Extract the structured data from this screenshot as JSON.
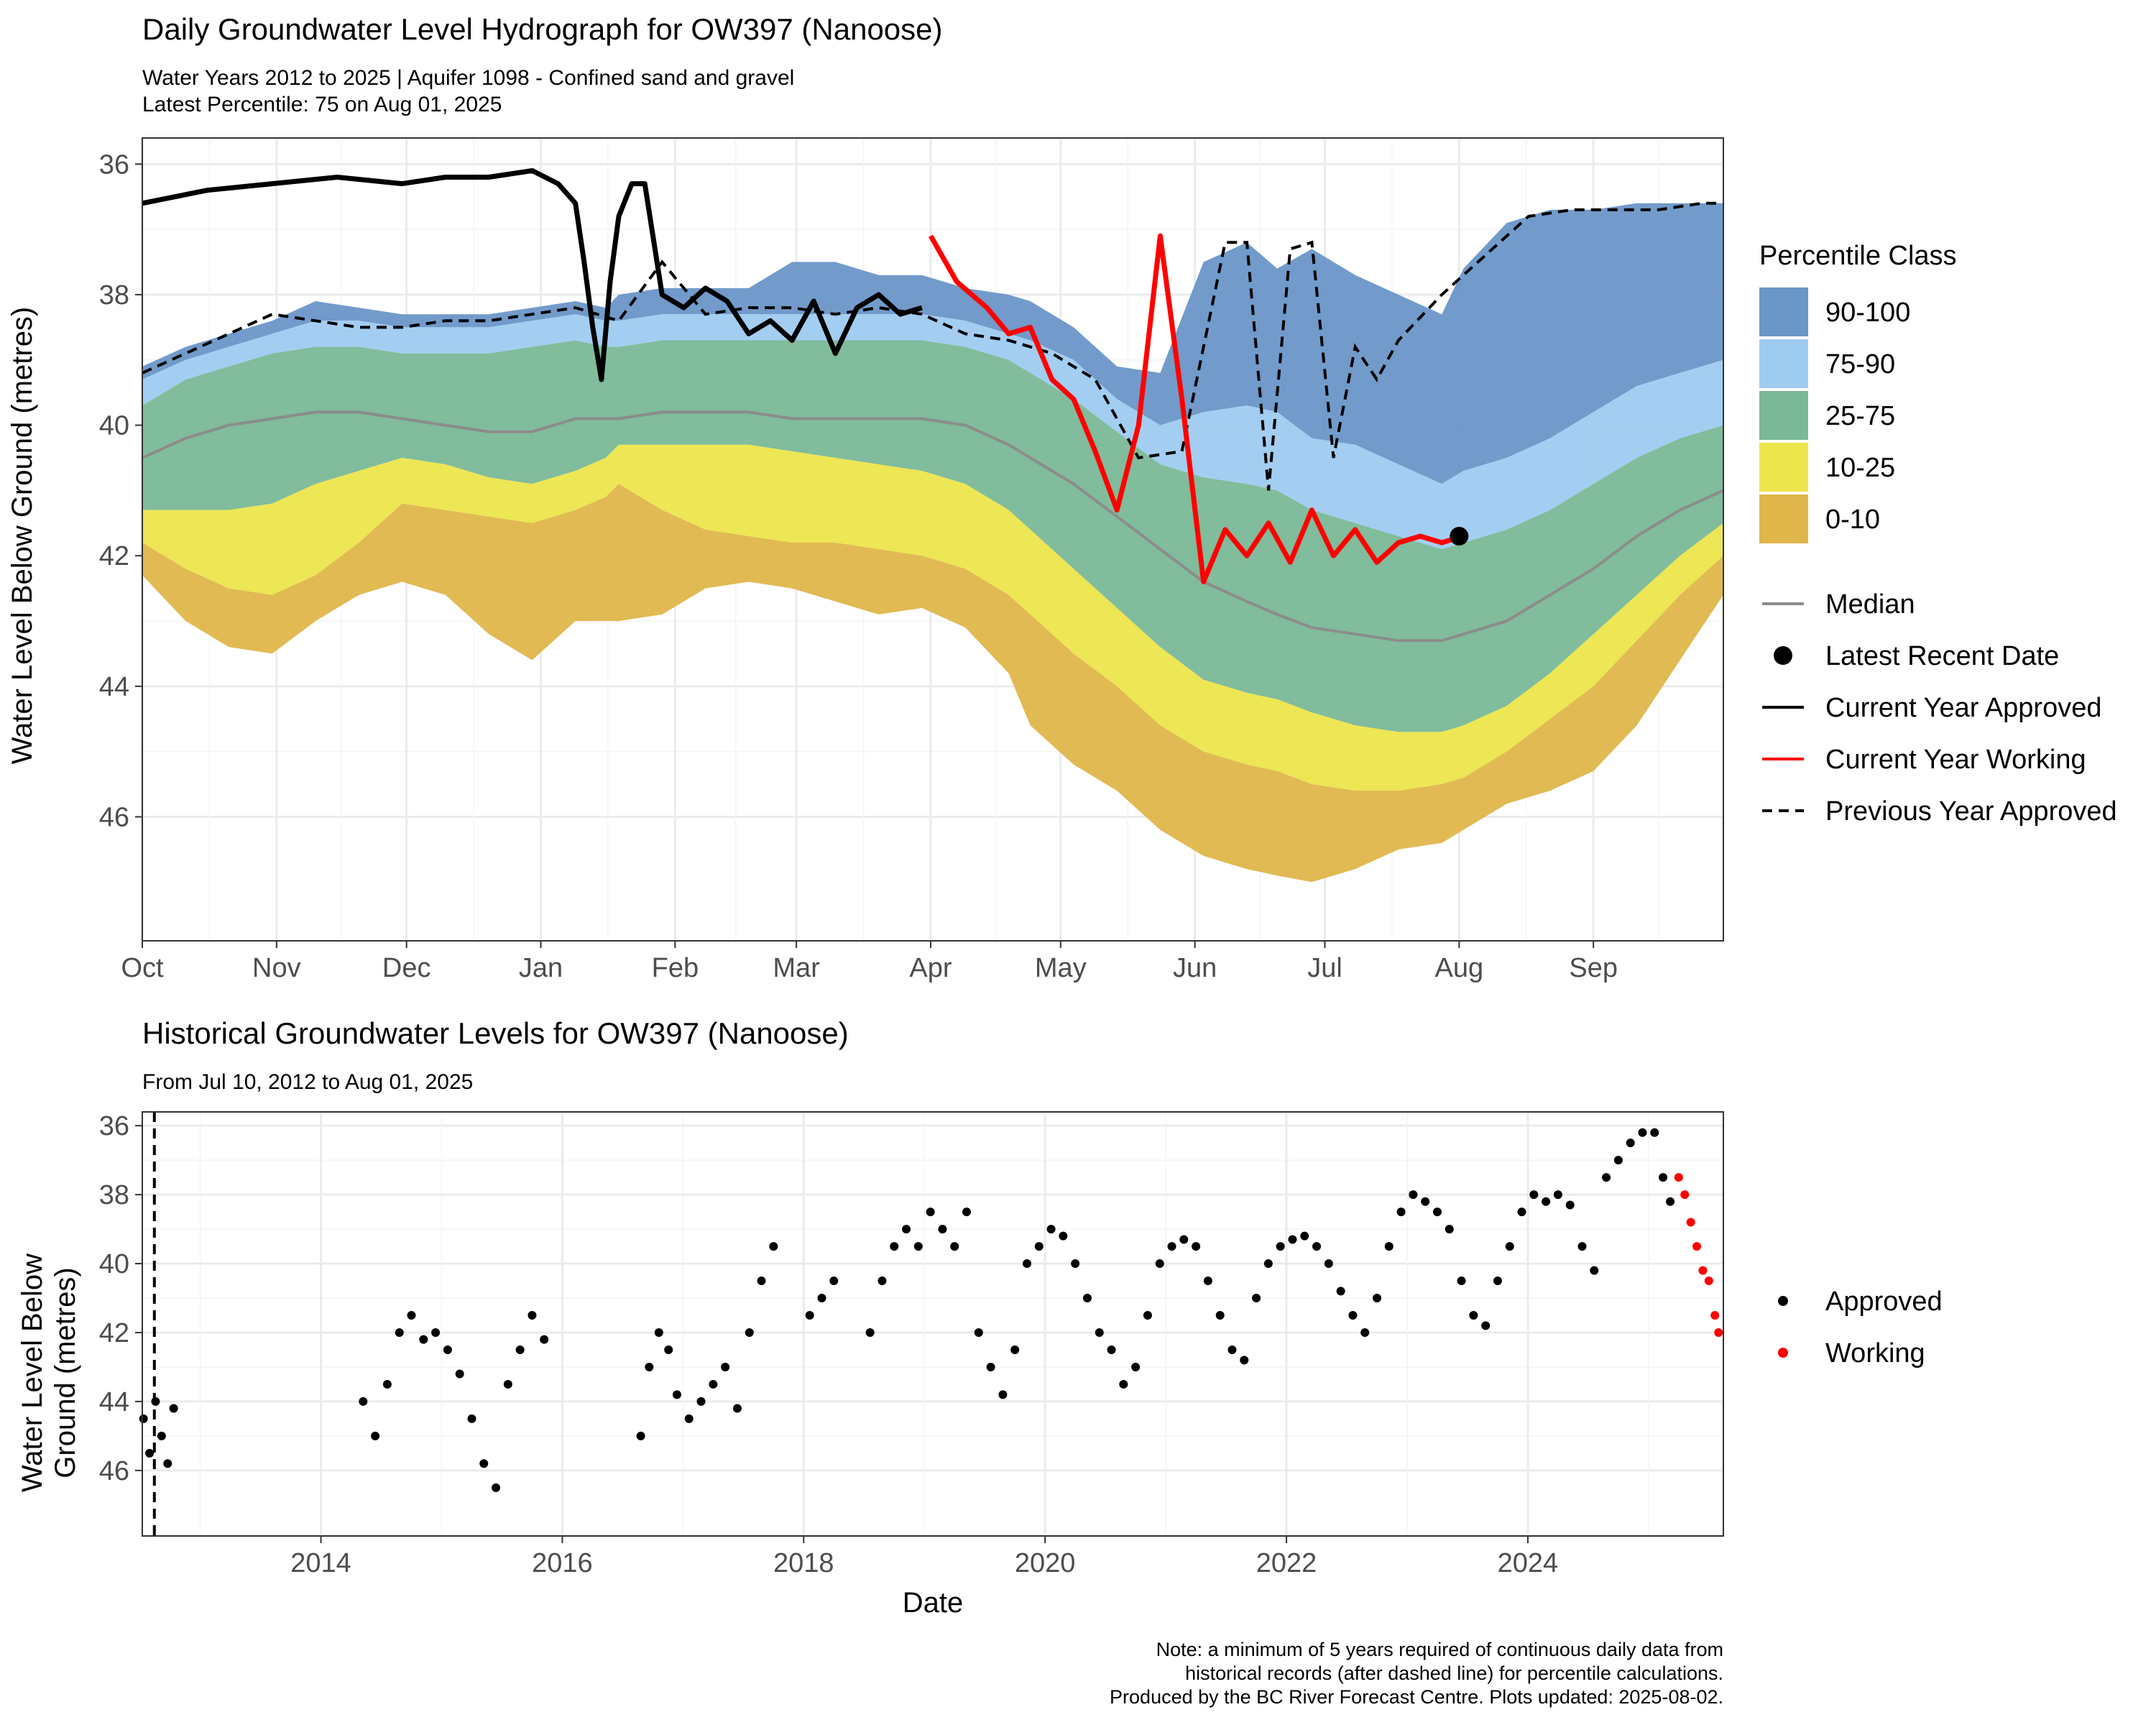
{
  "top": {
    "title": "Daily Groundwater Level Hydrograph for OW397 (Nanoose)",
    "subtitle1": "Water Years 2012 to 2025 | Aquifer 1098 - Confined sand and gravel",
    "subtitle2": "Latest Percentile: 75 on Aug 01, 2025",
    "ylabel": "Water Level Below Ground (metres)"
  },
  "bottom": {
    "title": "Historical Groundwater Levels for OW397 (Nanoose)",
    "subtitle": "From Jul 10, 2012 to Aug 01, 2025",
    "ylabel1": "Water Level Below",
    "ylabel2": "Ground (metres)",
    "xlabel": "Date"
  },
  "legend_top": {
    "title": "Percentile Class",
    "classes": [
      {
        "label": "90-100",
        "color": "#6a96c8"
      },
      {
        "label": "75-90",
        "color": "#9ecbf0"
      },
      {
        "label": "25-75",
        "color": "#7ab897"
      },
      {
        "label": "10-25",
        "color": "#ece54c"
      },
      {
        "label": "0-10",
        "color": "#dfb64a"
      }
    ],
    "lines": [
      {
        "label": "Median",
        "kind": "median"
      },
      {
        "label": "Latest Recent Date",
        "kind": "point"
      },
      {
        "label": "Current Year Approved",
        "kind": "approved"
      },
      {
        "label": "Current Year Working",
        "kind": "working"
      },
      {
        "label": "Previous Year Approved",
        "kind": "previous"
      }
    ]
  },
  "legend_bottom": {
    "items": [
      {
        "label": "Approved",
        "color": "#000000"
      },
      {
        "label": "Working",
        "color": "#ff0000"
      }
    ]
  },
  "note": {
    "line1": "Note: a minimum of 5 years required of continuous daily data from",
    "line2": "historical records (after dashed line) for percentile calculations.",
    "line3": "Produced by the BC River Forecast Centre. Plots updated: 2025-08-02."
  },
  "chart_data": [
    {
      "type": "area",
      "title": "Daily Groundwater Level Hydrograph for OW397 (Nanoose)",
      "xlabel": "",
      "ylabel": "Water Level Below Ground (metres)",
      "y_reversed": true,
      "ylim": [
        35.6,
        47.9
      ],
      "yticks": [
        36,
        38,
        40,
        42,
        44,
        46
      ],
      "x_ticks": [
        "Oct",
        "Nov",
        "Dec",
        "Jan",
        "Feb",
        "Mar",
        "Apr",
        "May",
        "Jun",
        "Jul",
        "Aug",
        "Sep"
      ],
      "x_units": "days since Oct 1 (water year)",
      "xlim": [
        0,
        365
      ],
      "month_day_offsets": [
        0,
        31,
        61,
        92,
        123,
        151,
        182,
        212,
        243,
        273,
        304,
        335
      ],
      "grid": true,
      "band_x": [
        0,
        10,
        20,
        30,
        40,
        50,
        60,
        70,
        80,
        90,
        100,
        107,
        110,
        120,
        130,
        140,
        150,
        160,
        170,
        180,
        190,
        200,
        205,
        215,
        225,
        235,
        245,
        255,
        262,
        270,
        280,
        290,
        300,
        305,
        315,
        325,
        335,
        345,
        355,
        365
      ],
      "series": [
        {
          "name": "Max",
          "values": [
            39.1,
            38.8,
            38.6,
            38.4,
            38.1,
            38.2,
            38.3,
            38.3,
            38.3,
            38.2,
            38.1,
            38.2,
            38.0,
            37.9,
            37.9,
            37.9,
            37.5,
            37.5,
            37.7,
            37.7,
            37.9,
            38.0,
            38.1,
            38.5,
            39.1,
            39.2,
            37.5,
            37.2,
            37.6,
            37.3,
            37.7,
            38.0,
            38.3,
            37.6,
            36.9,
            36.7,
            36.7,
            36.6,
            36.6,
            36.6
          ]
        },
        {
          "name": "P90",
          "values": [
            39.3,
            39.0,
            38.8,
            38.6,
            38.4,
            38.4,
            38.5,
            38.5,
            38.5,
            38.4,
            38.3,
            38.4,
            38.4,
            38.3,
            38.3,
            38.3,
            38.3,
            38.3,
            38.3,
            38.3,
            38.4,
            38.6,
            38.7,
            39.0,
            39.6,
            40.0,
            39.8,
            39.7,
            39.8,
            40.2,
            40.3,
            40.6,
            40.9,
            40.7,
            40.5,
            40.2,
            39.8,
            39.4,
            39.2,
            39.0
          ]
        },
        {
          "name": "P75",
          "values": [
            39.7,
            39.3,
            39.1,
            38.9,
            38.8,
            38.8,
            38.9,
            38.9,
            38.9,
            38.8,
            38.7,
            38.8,
            38.8,
            38.7,
            38.7,
            38.7,
            38.7,
            38.7,
            38.7,
            38.7,
            38.8,
            39.0,
            39.2,
            39.6,
            40.1,
            40.6,
            40.8,
            40.9,
            41.0,
            41.3,
            41.5,
            41.7,
            41.9,
            41.8,
            41.6,
            41.3,
            40.9,
            40.5,
            40.2,
            40.0
          ]
        },
        {
          "name": "Median",
          "values": [
            40.5,
            40.2,
            40.0,
            39.9,
            39.8,
            39.8,
            39.9,
            40.0,
            40.1,
            40.1,
            39.9,
            39.9,
            39.9,
            39.8,
            39.8,
            39.8,
            39.9,
            39.9,
            39.9,
            39.9,
            40.0,
            40.3,
            40.5,
            40.9,
            41.4,
            41.9,
            42.4,
            42.7,
            42.9,
            43.1,
            43.2,
            43.3,
            43.3,
            43.2,
            43.0,
            42.6,
            42.2,
            41.7,
            41.3,
            41.0
          ]
        },
        {
          "name": "P25",
          "values": [
            41.3,
            41.3,
            41.3,
            41.2,
            40.9,
            40.7,
            40.5,
            40.6,
            40.8,
            40.9,
            40.7,
            40.5,
            40.3,
            40.3,
            40.3,
            40.3,
            40.4,
            40.5,
            40.6,
            40.7,
            40.9,
            41.3,
            41.6,
            42.2,
            42.8,
            43.4,
            43.9,
            44.1,
            44.2,
            44.4,
            44.6,
            44.7,
            44.7,
            44.6,
            44.3,
            43.8,
            43.2,
            42.6,
            42.0,
            41.5
          ]
        },
        {
          "name": "P10",
          "values": [
            41.8,
            42.2,
            42.5,
            42.6,
            42.3,
            41.8,
            41.2,
            41.3,
            41.4,
            41.5,
            41.3,
            41.1,
            40.9,
            41.3,
            41.6,
            41.7,
            41.8,
            41.8,
            41.9,
            42.0,
            42.2,
            42.6,
            42.9,
            43.5,
            44.0,
            44.6,
            45.0,
            45.2,
            45.3,
            45.5,
            45.6,
            45.6,
            45.5,
            45.4,
            45.0,
            44.5,
            44.0,
            43.3,
            42.6,
            42.0
          ]
        },
        {
          "name": "Min",
          "values": [
            42.3,
            43.0,
            43.4,
            43.5,
            43.0,
            42.6,
            42.4,
            42.6,
            43.2,
            43.6,
            43.0,
            43.0,
            43.0,
            42.9,
            42.5,
            42.4,
            42.5,
            42.7,
            42.9,
            42.8,
            43.1,
            43.8,
            44.6,
            45.2,
            45.6,
            46.2,
            46.6,
            46.8,
            46.9,
            47.0,
            46.8,
            46.5,
            46.4,
            46.2,
            45.8,
            45.6,
            45.3,
            44.6,
            43.6,
            42.6
          ]
        },
        {
          "name": "Current Year Approved",
          "x": [
            0,
            15,
            30,
            45,
            60,
            70,
            80,
            90,
            96,
            100,
            102,
            104,
            106,
            108,
            110,
            113,
            116,
            120,
            125,
            130,
            135,
            140,
            145,
            150,
            155,
            160,
            165,
            170,
            175,
            180
          ],
          "values": [
            36.6,
            36.4,
            36.3,
            36.2,
            36.3,
            36.2,
            36.2,
            36.1,
            36.3,
            36.6,
            37.5,
            38.5,
            39.3,
            37.8,
            36.8,
            36.3,
            36.3,
            38.0,
            38.2,
            37.9,
            38.1,
            38.6,
            38.4,
            38.7,
            38.1,
            38.9,
            38.2,
            38.0,
            38.3,
            38.2
          ]
        },
        {
          "name": "Current Year Working",
          "x": [
            182,
            188,
            195,
            200,
            205,
            210,
            215,
            220,
            225,
            230,
            235,
            240,
            245,
            250,
            255,
            260,
            265,
            270,
            275,
            280,
            285,
            290,
            295,
            300,
            305
          ],
          "values": [
            37.1,
            37.8,
            38.2,
            38.6,
            38.5,
            39.3,
            39.6,
            40.4,
            41.3,
            40.0,
            37.1,
            39.6,
            42.4,
            41.6,
            42.0,
            41.5,
            42.1,
            41.3,
            42.0,
            41.6,
            42.1,
            41.8,
            41.7,
            41.8,
            41.7
          ]
        },
        {
          "name": "Previous Year Approved",
          "x": [
            0,
            10,
            20,
            30,
            40,
            50,
            60,
            70,
            80,
            90,
            100,
            110,
            120,
            130,
            140,
            150,
            160,
            170,
            180,
            190,
            200,
            210,
            220,
            230,
            240,
            250,
            255,
            260,
            265,
            270,
            275,
            280,
            285,
            290,
            300,
            310,
            320,
            330,
            340,
            350,
            360,
            365
          ],
          "values": [
            39.2,
            38.9,
            38.6,
            38.3,
            38.4,
            38.5,
            38.5,
            38.4,
            38.4,
            38.3,
            38.2,
            38.4,
            37.5,
            38.3,
            38.2,
            38.2,
            38.3,
            38.2,
            38.3,
            38.6,
            38.7,
            38.9,
            39.3,
            40.5,
            40.4,
            37.2,
            37.2,
            41.0,
            37.3,
            37.2,
            40.5,
            38.8,
            39.3,
            38.7,
            38.0,
            37.4,
            36.8,
            36.7,
            36.7,
            36.7,
            36.6,
            36.6
          ]
        },
        {
          "name": "Latest Recent Date",
          "x": [
            304
          ],
          "values": [
            41.7
          ]
        }
      ]
    },
    {
      "type": "scatter",
      "title": "Historical Groundwater Levels for OW397 (Nanoose)",
      "xlabel": "Date",
      "ylabel": "Water Level Below Ground (metres)",
      "y_reversed": true,
      "ylim": [
        35.6,
        47.9
      ],
      "yticks": [
        36,
        38,
        40,
        42,
        44,
        46
      ],
      "xlim": [
        2012.52,
        2025.62
      ],
      "xticks": [
        2014,
        2016,
        2018,
        2020,
        2022,
        2024
      ],
      "dashed_line_year": 2012.62,
      "grid": true,
      "series": [
        {
          "name": "Approved",
          "color": "#000000",
          "x": [
            2012.53,
            2012.58,
            2012.63,
            2012.68,
            2012.73,
            2012.78,
            2014.35,
            2014.45,
            2014.55,
            2014.65,
            2014.75,
            2014.85,
            2014.95,
            2015.05,
            2015.15,
            2015.25,
            2015.35,
            2015.45,
            2015.55,
            2015.65,
            2015.75,
            2015.85,
            2016.65,
            2016.72,
            2016.8,
            2016.88,
            2016.95,
            2017.05,
            2017.15,
            2017.25,
            2017.35,
            2017.45,
            2017.55,
            2017.65,
            2017.75,
            2018.05,
            2018.15,
            2018.25,
            2018.55,
            2018.65,
            2018.75,
            2018.85,
            2018.95,
            2019.05,
            2019.15,
            2019.25,
            2019.35,
            2019.45,
            2019.55,
            2019.65,
            2019.75,
            2019.85,
            2019.95,
            2020.05,
            2020.15,
            2020.25,
            2020.35,
            2020.45,
            2020.55,
            2020.65,
            2020.75,
            2020.85,
            2020.95,
            2021.05,
            2021.15,
            2021.25,
            2021.35,
            2021.45,
            2021.55,
            2021.65,
            2021.75,
            2021.85,
            2021.95,
            2022.05,
            2022.15,
            2022.25,
            2022.35,
            2022.45,
            2022.55,
            2022.65,
            2022.75,
            2022.85,
            2022.95,
            2023.05,
            2023.15,
            2023.25,
            2023.35,
            2023.45,
            2023.55,
            2023.65,
            2023.75,
            2023.85,
            2023.95,
            2024.05,
            2024.15,
            2024.25,
            2024.35,
            2024.45,
            2024.55,
            2024.65,
            2024.75,
            2024.85,
            2024.95,
            2025.05,
            2025.12,
            2025.18
          ],
          "values": [
            44.5,
            45.5,
            44.0,
            45.0,
            45.8,
            44.2,
            44.0,
            45.0,
            43.5,
            42.0,
            41.5,
            42.2,
            42.0,
            42.5,
            43.2,
            44.5,
            45.8,
            46.5,
            43.5,
            42.5,
            41.5,
            42.2,
            45.0,
            43.0,
            42.0,
            42.5,
            43.8,
            44.5,
            44.0,
            43.5,
            43.0,
            44.2,
            42.0,
            40.5,
            39.5,
            41.5,
            41.0,
            40.5,
            42.0,
            40.5,
            39.5,
            39.0,
            39.5,
            38.5,
            39.0,
            39.5,
            38.5,
            42.0,
            43.0,
            43.8,
            42.5,
            40.0,
            39.5,
            39.0,
            39.2,
            40.0,
            41.0,
            42.0,
            42.5,
            43.5,
            43.0,
            41.5,
            40.0,
            39.5,
            39.3,
            39.5,
            40.5,
            41.5,
            42.5,
            42.8,
            41.0,
            40.0,
            39.5,
            39.3,
            39.2,
            39.5,
            40.0,
            40.8,
            41.5,
            42.0,
            41.0,
            39.5,
            38.5,
            38.0,
            38.2,
            38.5,
            39.0,
            40.5,
            41.5,
            41.8,
            40.5,
            39.5,
            38.5,
            38.0,
            38.2,
            38.0,
            38.3,
            39.5,
            40.2,
            37.5,
            37.0,
            36.5,
            36.2,
            36.2,
            37.5,
            38.2
          ]
        },
        {
          "name": "Working",
          "color": "#ff0000",
          "x": [
            2025.25,
            2025.3,
            2025.35,
            2025.4,
            2025.45,
            2025.5,
            2025.55,
            2025.58
          ],
          "values": [
            37.5,
            38.0,
            38.8,
            39.5,
            40.2,
            40.5,
            41.5,
            42.0
          ]
        }
      ]
    }
  ]
}
